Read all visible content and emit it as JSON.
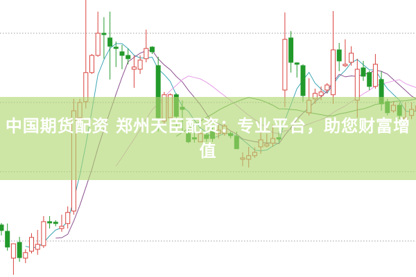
{
  "banner": {
    "title": "中国期货配资 郑州天臣配资：专业平台，助您财富增值"
  },
  "colors": {
    "up": "#d8413c",
    "down": "#22992b",
    "ma5": "#3aa6b4",
    "ma10": "#8a4f8e",
    "ma20": "#e59be6",
    "ma30": "#4f9a4d",
    "grid": "#9a9a9a"
  },
  "chart_data": {
    "type": "candlestick",
    "title": "",
    "xlabel": "",
    "ylabel": "",
    "ylim": [
      0,
      100
    ],
    "grid": true,
    "grid_lines": [
      88,
      63,
      38,
      13
    ],
    "moving_averages": [
      5,
      10,
      20,
      30
    ],
    "candles_ohlc": [
      [
        18.8,
        19.5,
        15,
        16.8
      ],
      [
        16.5,
        19.3,
        9.5,
        10.8
      ],
      [
        6.8,
        12,
        0.8,
        12
      ],
      [
        12.5,
        14.5,
        5.5,
        7
      ],
      [
        6.8,
        10,
        5,
        8.8
      ],
      [
        9.3,
        15.8,
        8.5,
        14.3
      ],
      [
        10,
        17,
        8,
        11.8
      ],
      [
        11.3,
        22,
        10.5,
        20
      ],
      [
        20,
        22,
        17.5,
        19.5
      ],
      [
        19.8,
        20.5,
        18.3,
        19.3
      ],
      [
        17.5,
        22.5,
        16.3,
        18.3
      ],
      [
        19.3,
        25.5,
        17.5,
        23.3
      ],
      [
        23.8,
        64.3,
        22.5,
        60
      ],
      [
        57.5,
        64.3,
        55,
        63
      ],
      [
        63.3,
        100,
        60.8,
        73.8
      ],
      [
        73.8,
        80.5,
        73.3,
        80
      ],
      [
        80,
        95.8,
        79.5,
        88
      ],
      [
        88,
        93.8,
        78.8,
        87.5
      ],
      [
        86.3,
        95.8,
        71.3,
        83.3
      ],
      [
        83,
        85,
        75.8,
        82.5
      ],
      [
        81.3,
        83.8,
        75,
        80
      ],
      [
        80,
        82.5,
        76.8,
        78.8
      ],
      [
        75,
        80,
        68.3,
        75.8
      ],
      [
        75,
        80,
        73.3,
        78.3
      ],
      [
        78.8,
        89.3,
        77.5,
        82.5
      ],
      [
        83,
        83.3,
        80.5,
        81.3
      ],
      [
        76.3,
        79.5,
        52.5,
        57.5
      ],
      [
        56.3,
        66.8,
        55,
        65.8
      ],
      [
        57.5,
        66.3,
        56.3,
        65.8
      ],
      [
        65.8,
        66.3,
        53.8,
        58
      ],
      [
        61.3,
        63.8,
        52.5,
        60.5
      ],
      [
        51.8,
        53.8,
        48.3,
        48.8
      ],
      [
        50.3,
        53.8,
        48.5,
        49.8
      ],
      [
        48.8,
        52.5,
        48.8,
        51.8
      ],
      [
        51.3,
        52.5,
        48.8,
        50
      ],
      [
        52.5,
        53.8,
        48.8,
        50
      ],
      [
        51.8,
        55,
        50,
        53
      ],
      [
        51.8,
        55.5,
        51,
        54.5
      ],
      [
        51.8,
        52.5,
        50,
        51
      ],
      [
        50.8,
        52.5,
        46.3,
        46.3
      ],
      [
        42.5,
        45,
        40,
        43
      ],
      [
        42.5,
        47,
        39.5,
        43.8
      ],
      [
        43.8,
        46.8,
        43,
        45
      ],
      [
        47,
        53.8,
        44.5,
        49.5
      ],
      [
        47.3,
        51.8,
        46.8,
        48
      ],
      [
        48.3,
        55,
        47,
        50
      ],
      [
        50.3,
        52.5,
        48.8,
        49.8
      ],
      [
        67.5,
        95.5,
        61.3,
        85.8
      ],
      [
        86.3,
        88.8,
        73.8,
        77.5
      ],
      [
        77.3,
        77.5,
        72,
        76.8
      ],
      [
        76.3,
        76.8,
        63.3,
        65.5
      ],
      [
        59.3,
        71.8,
        58.3,
        63.8
      ],
      [
        64.3,
        68,
        62.5,
        66.3
      ],
      [
        65.5,
        68.8,
        63.8,
        66.8
      ],
      [
        67.5,
        70,
        66.3,
        69.3
      ],
      [
        65.8,
        96,
        62.5,
        82
      ],
      [
        82,
        84.5,
        74.3,
        78
      ],
      [
        76.3,
        85.8,
        75.8,
        76.8
      ],
      [
        77.5,
        83.3,
        76.3,
        80.8
      ],
      [
        63.8,
        78.8,
        57.5,
        75
      ],
      [
        75.5,
        78,
        70.8,
        72.5
      ],
      [
        73.8,
        74.5,
        67.5,
        68.8
      ],
      [
        68.8,
        80.5,
        68,
        76.8
      ],
      [
        71.3,
        74.3,
        60,
        62.5
      ],
      [
        63.3,
        64.3,
        58.3,
        59.3
      ],
      [
        60,
        63.3,
        59.3,
        62
      ],
      [
        62,
        63,
        57,
        58.3
      ],
      [
        55,
        63,
        54.3,
        57.5
      ],
      [
        58.3,
        63,
        57,
        60.5
      ],
      [
        60,
        63.8,
        58.8,
        61.8
      ]
    ]
  }
}
